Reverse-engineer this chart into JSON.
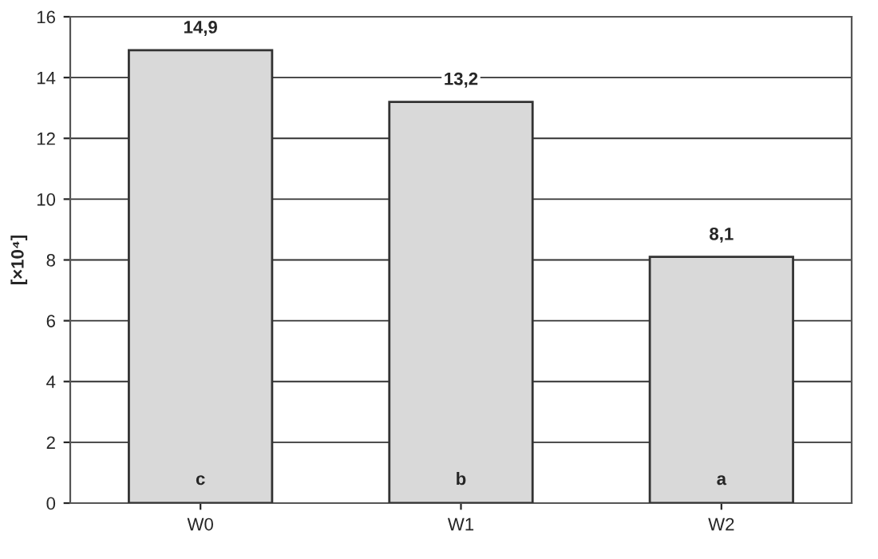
{
  "chart_data": {
    "type": "bar",
    "ylabel": "[×10⁴]",
    "categories": [
      "W0",
      "W1",
      "W2"
    ],
    "values": [
      14.9,
      13.2,
      8.1
    ],
    "value_labels": [
      "14,9",
      "13,2",
      "8,1"
    ],
    "color": "#d9d9d9",
    "ylim": [
      0,
      16
    ],
    "yticks": [
      0,
      2,
      4,
      6,
      8,
      10,
      12,
      14,
      16
    ],
    "grid": "y",
    "annotations": [
      "c",
      "b",
      "a"
    ]
  }
}
